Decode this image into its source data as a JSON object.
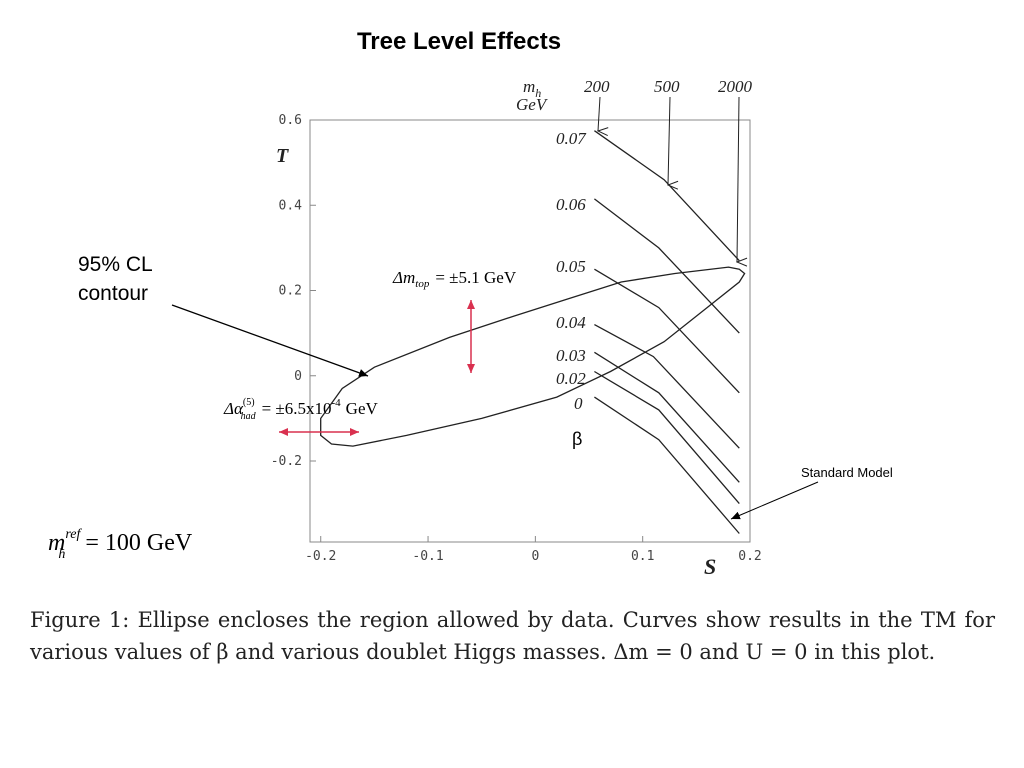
{
  "title": "Tree Level Effects",
  "caption": "Figure 1: Ellipse encloses the region allowed by data. Curves show results in the TM for various values of β and various doublet Higgs masses. Δm = 0 and U = 0 in this plot.",
  "annotations": {
    "contour_label_line1": "95% CL",
    "contour_label_line2": "contour",
    "dm_top": "Δm",
    "dm_top_sub": "top",
    "dm_top_val": "= ±5.1 GeV",
    "dalpha": "Δα",
    "dalpha_sup": "(5)",
    "dalpha_sub": "had",
    "dalpha_val": "= ±6.5x10",
    "dalpha_exp": "-4",
    "dalpha_unit": "GeV",
    "standard_model": "Standard Model",
    "mh_ref_m": "m",
    "mh_ref_sup": "ref",
    "mh_ref_sub": "h",
    "mh_ref_val": "= 100 GeV",
    "mh_header_m": "m",
    "mh_header_sub": "h",
    "mh_header_unit": "GeV",
    "beta_label": "β"
  },
  "colors": {
    "arrow_red": "#d9304f",
    "line": "#222222",
    "axis": "#444444"
  },
  "chart_data": {
    "type": "line",
    "xlabel": "S",
    "ylabel": "T",
    "xlim": [
      -0.21,
      0.2
    ],
    "ylim": [
      -0.39,
      0.6
    ],
    "xticks": [
      -0.2,
      -0.1,
      0,
      0.1,
      0.2
    ],
    "xtick_labels": [
      "-0.2",
      "-0.1",
      "0",
      "0.1",
      "0.2"
    ],
    "yticks": [
      -0.2,
      0,
      0.2,
      0.4,
      0.6
    ],
    "ytick_labels": [
      "-0.2",
      "0",
      "0.2",
      "0.4",
      "0.6"
    ],
    "grid": false,
    "ellipse": [
      [
        -0.2,
        -0.14
      ],
      [
        -0.19,
        -0.16
      ],
      [
        -0.17,
        -0.165
      ],
      [
        -0.12,
        -0.14
      ],
      [
        -0.05,
        -0.1
      ],
      [
        0.02,
        -0.05
      ],
      [
        0.07,
        0.01
      ],
      [
        0.12,
        0.08
      ],
      [
        0.16,
        0.16
      ],
      [
        0.19,
        0.22
      ],
      [
        0.195,
        0.24
      ],
      [
        0.19,
        0.25
      ],
      [
        0.18,
        0.255
      ],
      [
        0.13,
        0.24
      ],
      [
        0.08,
        0.22
      ],
      [
        0.03,
        0.18
      ],
      [
        -0.02,
        0.14
      ],
      [
        -0.08,
        0.09
      ],
      [
        -0.15,
        0.02
      ],
      [
        -0.18,
        -0.03
      ],
      [
        -0.2,
        -0.1
      ],
      [
        -0.2,
        -0.14
      ]
    ],
    "series": [
      {
        "name": "0.07",
        "points": [
          [
            0.055,
            0.575
          ],
          [
            0.12,
            0.46
          ],
          [
            0.19,
            0.27
          ]
        ]
      },
      {
        "name": "0.06",
        "points": [
          [
            0.055,
            0.415
          ],
          [
            0.115,
            0.3
          ],
          [
            0.19,
            0.1
          ]
        ]
      },
      {
        "name": "0.05",
        "points": [
          [
            0.055,
            0.25
          ],
          [
            0.115,
            0.16
          ],
          [
            0.19,
            -0.04
          ]
        ]
      },
      {
        "name": "0.04",
        "points": [
          [
            0.055,
            0.12
          ],
          [
            0.11,
            0.045
          ],
          [
            0.19,
            -0.17
          ]
        ]
      },
      {
        "name": "0.03",
        "points": [
          [
            0.055,
            0.055
          ],
          [
            0.115,
            -0.04
          ],
          [
            0.19,
            -0.25
          ]
        ]
      },
      {
        "name": "0.02",
        "points": [
          [
            0.055,
            0.01
          ],
          [
            0.115,
            -0.08
          ],
          [
            0.19,
            -0.3
          ]
        ]
      },
      {
        "name": "0",
        "points": [
          [
            0.055,
            -0.05
          ],
          [
            0.115,
            -0.15
          ],
          [
            0.19,
            -0.37
          ]
        ]
      }
    ],
    "mh_values": [
      "200",
      "500",
      "2000"
    ],
    "mh_arrow_targets": [
      [
        0.055,
        0.575
      ],
      [
        0.12,
        0.46
      ],
      [
        0.19,
        0.27
      ]
    ]
  }
}
